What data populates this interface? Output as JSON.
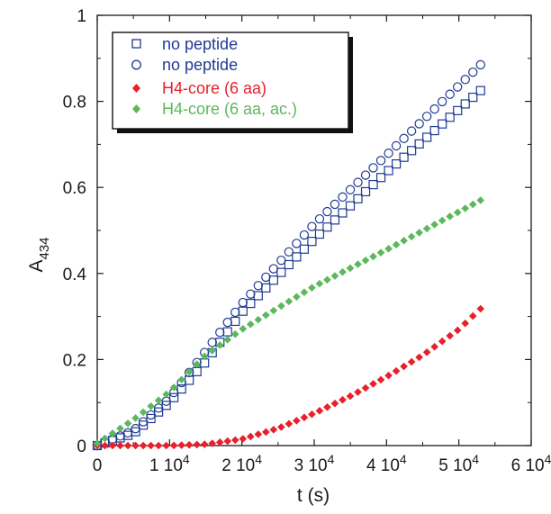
{
  "chart_data": {
    "type": "scatter",
    "xlabel": "t (s)",
    "ylabel_main": "A",
    "ylabel_sub": "434",
    "xlim": [
      0,
      60000
    ],
    "ylim": [
      0,
      1
    ],
    "x_ticks": [
      {
        "value": 0,
        "mant": "0",
        "exp": ""
      },
      {
        "value": 10000,
        "mant": "1 10",
        "exp": "4"
      },
      {
        "value": 20000,
        "mant": "2 10",
        "exp": "4"
      },
      {
        "value": 30000,
        "mant": "3 10",
        "exp": "4"
      },
      {
        "value": 40000,
        "mant": "4 10",
        "exp": "4"
      },
      {
        "value": 50000,
        "mant": "5 10",
        "exp": "4"
      },
      {
        "value": 60000,
        "mant": "6 10",
        "exp": "4"
      }
    ],
    "y_ticks": [
      {
        "value": 0,
        "label": "0"
      },
      {
        "value": 0.2,
        "label": "0.2"
      },
      {
        "value": 0.4,
        "label": "0.4"
      },
      {
        "value": 0.6,
        "label": "0.6"
      },
      {
        "value": 0.8,
        "label": "0.8"
      },
      {
        "value": 1,
        "label": "1"
      }
    ],
    "grid": false,
    "legend_position": "top-left",
    "series": [
      {
        "name": "no peptide",
        "marker": "square-open",
        "color": "#1f3a93",
        "key": "sq",
        "x_range": [
          0,
          53000
        ],
        "step": 1060,
        "points": [
          [
            0,
            0
          ],
          [
            5000,
            0.028
          ],
          [
            10000,
            0.1
          ],
          [
            15000,
            0.195
          ],
          [
            20000,
            0.31
          ],
          [
            30000,
            0.48
          ],
          [
            40000,
            0.635
          ],
          [
            53000,
            0.825
          ]
        ]
      },
      {
        "name": "no peptide",
        "marker": "circle-open",
        "color": "#1f3a93",
        "key": "ci",
        "x_range": [
          0,
          53000
        ],
        "step": 1060,
        "points": [
          [
            0,
            0
          ],
          [
            5000,
            0.035
          ],
          [
            10000,
            0.11
          ],
          [
            15000,
            0.22
          ],
          [
            20000,
            0.33
          ],
          [
            30000,
            0.515
          ],
          [
            40000,
            0.675
          ],
          [
            53000,
            0.885
          ]
        ]
      },
      {
        "name": "H4-core (6 aa)",
        "marker": "diamond-filled",
        "color": "#e8202a",
        "key": "red",
        "x_range": [
          0,
          53000
        ],
        "step": 1060,
        "points": [
          [
            0,
            0
          ],
          [
            10000,
            0
          ],
          [
            15000,
            0.003
          ],
          [
            20000,
            0.015
          ],
          [
            25000,
            0.04
          ],
          [
            30000,
            0.075
          ],
          [
            35000,
            0.115
          ],
          [
            40000,
            0.16
          ],
          [
            45000,
            0.21
          ],
          [
            50000,
            0.27
          ],
          [
            53000,
            0.318
          ]
        ]
      },
      {
        "name": "H4-core (6 aa, ac.)",
        "marker": "diamond-filled",
        "color": "#5cb85c",
        "key": "green",
        "x_range": [
          0,
          53000
        ],
        "step": 1060,
        "points": [
          [
            0,
            0.005
          ],
          [
            5000,
            0.06
          ],
          [
            10000,
            0.125
          ],
          [
            15000,
            0.21
          ],
          [
            20000,
            0.27
          ],
          [
            30000,
            0.37
          ],
          [
            40000,
            0.455
          ],
          [
            53000,
            0.57
          ]
        ]
      }
    ]
  },
  "colors": {
    "axis": "#1a1a1a",
    "legend_blue": "#1f3a93",
    "legend_red": "#e8202a",
    "legend_green": "#5cb85c"
  }
}
